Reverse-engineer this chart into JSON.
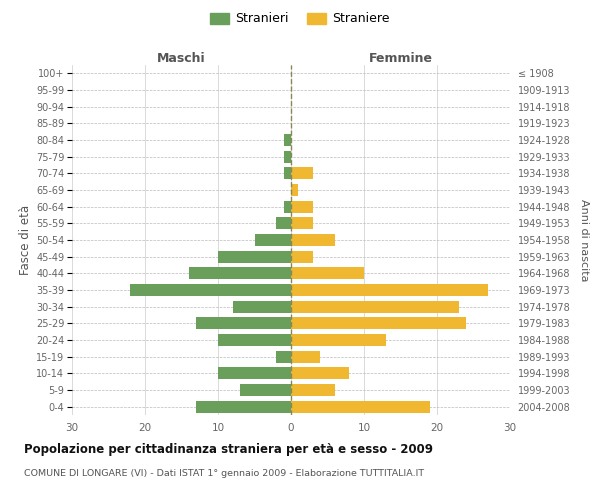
{
  "age_groups": [
    "100+",
    "95-99",
    "90-94",
    "85-89",
    "80-84",
    "75-79",
    "70-74",
    "65-69",
    "60-64",
    "55-59",
    "50-54",
    "45-49",
    "40-44",
    "35-39",
    "30-34",
    "25-29",
    "20-24",
    "15-19",
    "10-14",
    "5-9",
    "0-4"
  ],
  "birth_years": [
    "≤ 1908",
    "1909-1913",
    "1914-1918",
    "1919-1923",
    "1924-1928",
    "1929-1933",
    "1934-1938",
    "1939-1943",
    "1944-1948",
    "1949-1953",
    "1954-1958",
    "1959-1963",
    "1964-1968",
    "1969-1973",
    "1974-1978",
    "1979-1983",
    "1984-1988",
    "1989-1993",
    "1994-1998",
    "1999-2003",
    "2004-2008"
  ],
  "maschi": [
    0,
    0,
    0,
    0,
    1,
    1,
    1,
    0,
    1,
    2,
    5,
    10,
    14,
    22,
    8,
    13,
    10,
    2,
    10,
    7,
    13
  ],
  "femmine": [
    0,
    0,
    0,
    0,
    0,
    0,
    3,
    1,
    3,
    3,
    6,
    3,
    10,
    27,
    23,
    24,
    13,
    4,
    8,
    6,
    19
  ],
  "maschi_color": "#6a9e5b",
  "femmine_color": "#f0b830",
  "background_color": "#ffffff",
  "grid_color": "#cccccc",
  "title": "Popolazione per cittadinanza straniera per età e sesso - 2009",
  "subtitle": "COMUNE DI LONGARE (VI) - Dati ISTAT 1° gennaio 2009 - Elaborazione TUTTITALIA.IT",
  "ylabel_left": "Fasce di età",
  "ylabel_right": "Anni di nascita",
  "header_maschi": "Maschi",
  "header_femmine": "Femmine",
  "legend_stranieri": "Stranieri",
  "legend_straniere": "Straniere",
  "xlim": 30
}
